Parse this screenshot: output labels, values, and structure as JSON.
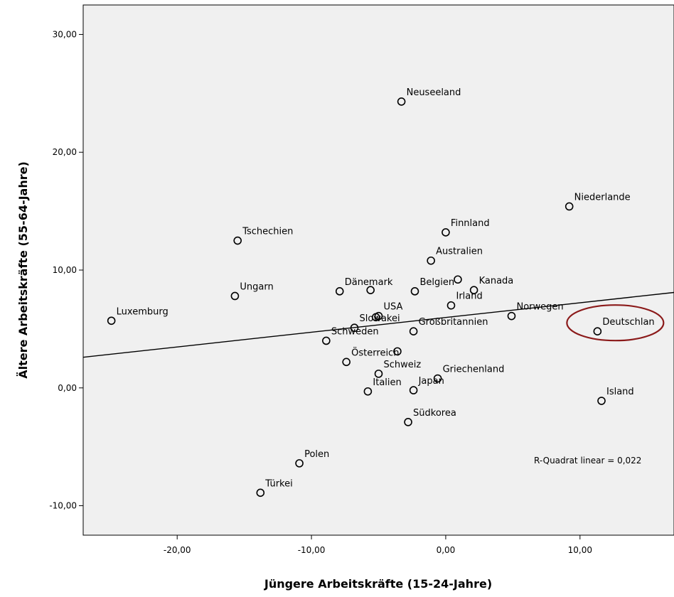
{
  "chart_data": {
    "type": "scatter",
    "xlabel": "Jüngere Arbeitskräfte (15-24-Jahre)",
    "ylabel": "Ältere Arbeitskräfte (55-64-Jahre)",
    "xlim": [
      -27,
      17
    ],
    "ylim": [
      -12.5,
      32.5
    ],
    "x_ticks": [
      -20,
      -10,
      0,
      10
    ],
    "x_tick_labels": [
      "-20,00",
      "-10,00",
      "0,00",
      "10,00"
    ],
    "y_ticks": [
      -10,
      0,
      10,
      20,
      30
    ],
    "y_tick_labels": [
      "-10,00",
      "0,00",
      "10,00",
      "20,00",
      "30,00"
    ],
    "grid": false,
    "points": [
      {
        "label": "Neuseeland",
        "x": -3.3,
        "y": 24.3
      },
      {
        "label": "Niederlande",
        "x": 9.2,
        "y": 15.4
      },
      {
        "label": "Finnland",
        "x": 0.0,
        "y": 13.2
      },
      {
        "label": "Tschechien",
        "x": -15.5,
        "y": 12.5
      },
      {
        "label": "Australien",
        "x": -1.1,
        "y": 10.8
      },
      {
        "label": "Kanada",
        "x": 2.1,
        "y": 8.3
      },
      {
        "label": "",
        "x": 0.9,
        "y": 9.2
      },
      {
        "label": "Belgien",
        "x": -2.3,
        "y": 8.2
      },
      {
        "label": "Dänemark",
        "x": -7.9,
        "y": 8.2
      },
      {
        "label": "",
        "x": -5.6,
        "y": 8.3
      },
      {
        "label": "Ungarn",
        "x": -15.7,
        "y": 7.8
      },
      {
        "label": "Irland",
        "x": 0.4,
        "y": 7.0
      },
      {
        "label": "USA",
        "x": -5.0,
        "y": 6.1
      },
      {
        "label": "",
        "x": -5.2,
        "y": 6.0
      },
      {
        "label": "Norwegen",
        "x": 4.9,
        "y": 6.1
      },
      {
        "label": "Luxemburg",
        "x": -24.9,
        "y": 5.7
      },
      {
        "label": "Slowakei",
        "x": -6.8,
        "y": 5.1
      },
      {
        "label": "Großbritannien",
        "x": -2.4,
        "y": 4.8
      },
      {
        "label": "Deutschlan",
        "x": 11.3,
        "y": 4.8
      },
      {
        "label": "Schweden",
        "x": -8.9,
        "y": 4.0
      },
      {
        "label": "",
        "x": -3.6,
        "y": 3.1
      },
      {
        "label": "Österreich",
        "x": -7.4,
        "y": 2.2
      },
      {
        "label": "Schweiz",
        "x": -5.0,
        "y": 1.2
      },
      {
        "label": "Griechenland",
        "x": -0.6,
        "y": 0.8
      },
      {
        "label": "Island",
        "x": 11.6,
        "y": -1.1
      },
      {
        "label": "Italien",
        "x": -5.8,
        "y": -0.3
      },
      {
        "label": "Japan",
        "x": -2.4,
        "y": -0.2
      },
      {
        "label": "Südkorea",
        "x": -2.8,
        "y": -2.9
      },
      {
        "label": "Polen",
        "x": -10.9,
        "y": -6.4
      },
      {
        "label": "Türkei",
        "x": -13.8,
        "y": -8.9
      }
    ],
    "fit_line": {
      "x1": -27,
      "y1": 2.6,
      "x2": 17,
      "y2": 8.1
    },
    "annotation": "R-Quadrat linear = 0,022",
    "highlight": {
      "label": "Deutschlan",
      "color": "#8b1a1a"
    },
    "colors": {
      "plot_background": "#f0f0f0",
      "point_stroke": "#000000",
      "fit_line": "#000000"
    }
  }
}
